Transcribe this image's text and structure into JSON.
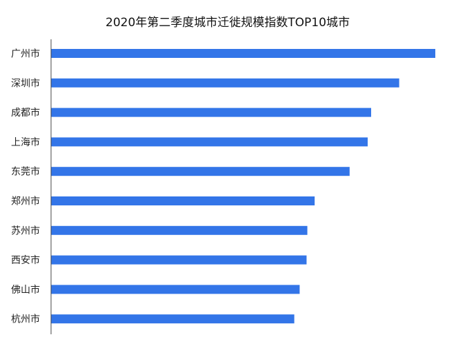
{
  "chart_data": {
    "type": "bar",
    "orientation": "horizontal",
    "title": "2020年第二季度城市迁徙规模指数TOP10城市",
    "categories": [
      "广州市",
      "深圳市",
      "成都市",
      "上海市",
      "东莞市",
      "郑州市",
      "苏州市",
      "西安市",
      "佛山市",
      "杭州市"
    ],
    "values": [
      100,
      90.6,
      83.3,
      82.4,
      77.7,
      68.6,
      66.7,
      66.5,
      64.7,
      63.3
    ],
    "xlabel": "",
    "ylabel": "",
    "xlim": [
      0,
      100
    ],
    "grid": false,
    "legend": "none",
    "bar_color": "#3375E8",
    "axis_color": "#444444"
  }
}
